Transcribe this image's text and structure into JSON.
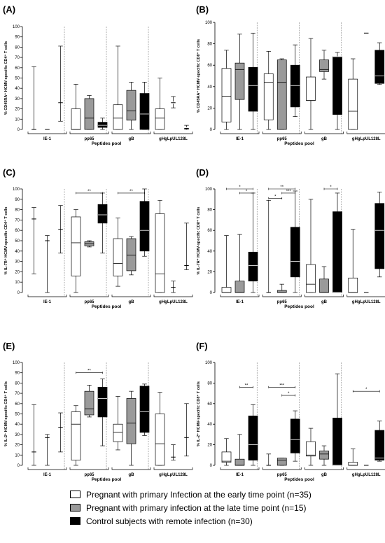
{
  "colors": {
    "early": "#ffffff",
    "late": "#9a9a9a",
    "control": "#000000"
  },
  "legend": [
    {
      "label": "Pregnant with primary Infection at the early time point (n=35)",
      "color": "#ffffff"
    },
    {
      "label": "Pregnant with primary infection at the late time point (n=15)",
      "color": "#9a9a9a"
    },
    {
      "label": "Control subjects with remote infection (n=30)",
      "color": "#000000"
    }
  ],
  "chart_data": [
    {
      "panel": "(A)",
      "type": "box",
      "ylabel": "% CD45RA⁺ HCMV-specific CD4⁺ T cells",
      "xlabel": "Peptides pool",
      "categories": [
        "IE-1",
        "pp65",
        "gB",
        "gHgLpUL128L"
      ],
      "ylim": [
        0,
        100
      ],
      "yticks": [
        0,
        10,
        20,
        30,
        40,
        50,
        60,
        70,
        80,
        90,
        100
      ],
      "series": [
        {
          "name": "Pregnant with primary Infection at the early time point (n=35)",
          "boxes": [
            [
              0,
              0,
              0,
              0,
              61
            ],
            [
              0,
              0,
              0,
              20,
              44
            ],
            [
              0,
              0,
              11,
              24,
              81
            ],
            [
              0,
              0,
              11,
              20,
              50
            ]
          ]
        },
        {
          "name": "Pregnant with primary infection at the late time point (n=15)",
          "boxes": [
            [
              0,
              0,
              0,
              0,
              0
            ],
            [
              0,
              0,
              11,
              30,
              33
            ],
            [
              0,
              9,
              18,
              38,
              46
            ],
            [
              21,
              25,
              26,
              27,
              32
            ]
          ]
        },
        {
          "name": "Control subjects with remote infection (n=30)",
          "boxes": [
            [
              8,
              26,
              26,
              26,
              81
            ],
            [
              0,
              2,
              4,
              7,
              11
            ],
            [
              0,
              0,
              15,
              35,
              46
            ],
            [
              0,
              1,
              1,
              2,
              4
            ]
          ]
        }
      ],
      "box_visible": [
        [
          false,
          true,
          true,
          true
        ],
        [
          false,
          true,
          true,
          false
        ],
        [
          false,
          true,
          true,
          false
        ]
      ],
      "significance": []
    },
    {
      "panel": "(B)",
      "type": "box",
      "ylabel": "% CD45RA⁺ HCMV-specific CD8⁺ T cells",
      "xlabel": "Peptides pool",
      "categories": [
        "IE-1",
        "pp65",
        "gB",
        "gHgLpUL128L"
      ],
      "ylim": [
        0,
        100
      ],
      "yticks": [
        0,
        20,
        40,
        60,
        80,
        100
      ],
      "series": [
        {
          "name": "Pregnant with primary Infection at the early time point (n=35)",
          "boxes": [
            [
              0,
              7,
              31,
              57,
              74
            ],
            [
              0,
              9,
              44,
              52,
              73
            ],
            [
              0,
              27,
              27,
              49,
              85
            ],
            [
              0,
              0,
              17,
              47,
              66
            ]
          ]
        },
        {
          "name": "Pregnant with primary infection at the late time point (n=15)",
          "boxes": [
            [
              0,
              28,
              56,
              62,
              89
            ],
            [
              0,
              0,
              44,
              65,
              66
            ],
            [
              47,
              54,
              56,
              65,
              74
            ],
            [
              90,
              90,
              90,
              90,
              90
            ]
          ]
        },
        {
          "name": "Control subjects with remote infection (n=30)",
          "boxes": [
            [
              0,
              17,
              41,
              58,
              90
            ],
            [
              12,
              21,
              41,
              60,
              79
            ],
            [
              0,
              14,
              68,
              68,
              72
            ],
            [
              42,
              43,
              50,
              74,
              81
            ]
          ]
        }
      ],
      "box_visible": [
        [
          true,
          true,
          true,
          true
        ],
        [
          true,
          true,
          true,
          false
        ],
        [
          true,
          true,
          true,
          true
        ]
      ],
      "significance": []
    },
    {
      "panel": "(C)",
      "type": "box",
      "ylabel": "% IL-7R⁺ HCMV-specific CD4⁺ T cells",
      "xlabel": "Peptides pool",
      "categories": [
        "IE-1",
        "pp65",
        "gB",
        "gHgLpUL128L"
      ],
      "ylim": [
        0,
        100
      ],
      "yticks": [
        0,
        10,
        20,
        30,
        40,
        50,
        60,
        70,
        80,
        90,
        100
      ],
      "series": [
        {
          "name": "Pregnant with primary Infection at the early time point (n=35)",
          "boxes": [
            [
              18,
              71,
              71,
              71,
              82
            ],
            [
              0,
              16,
              48,
              73,
              80
            ],
            [
              6,
              16,
              28,
              52,
              72
            ],
            [
              0,
              0,
              18,
              76,
              89
            ]
          ]
        },
        {
          "name": "Pregnant with primary infection at the late time point (n=15)",
          "boxes": [
            [
              0,
              50,
              50,
              50,
              55
            ],
            [
              44,
              45,
              47,
              49,
              50
            ],
            [
              17,
              21,
              36,
              52,
              54
            ],
            [
              0,
              5,
              5,
              5,
              11
            ]
          ]
        },
        {
          "name": "Control subjects with remote infection (n=30)",
          "boxes": [
            [
              38,
              61,
              61,
              61,
              84
            ],
            [
              38,
              67,
              75,
              85,
              96
            ],
            [
              35,
              40,
              60,
              88,
              100
            ],
            [
              22,
              26,
              26,
              26,
              67
            ]
          ]
        }
      ],
      "box_visible": [
        [
          false,
          true,
          true,
          true
        ],
        [
          false,
          true,
          true,
          false
        ],
        [
          false,
          true,
          true,
          false
        ]
      ],
      "significance": [
        {
          "label": "**",
          "pool": 1,
          "from": 0,
          "to": 2,
          "y": 96
        },
        {
          "label": "**",
          "pool": 2,
          "from": 0,
          "to": 2,
          "y": 96
        }
      ]
    },
    {
      "panel": "(D)",
      "type": "box",
      "ylabel": "% IL-7R⁺ HCMV-specific CD8⁺ T cells",
      "xlabel": "Peptides pool",
      "categories": [
        "IE-1",
        "pp65",
        "gB",
        "gHgLpUL128L"
      ],
      "ylim": [
        0,
        100
      ],
      "yticks": [
        0,
        20,
        40,
        60,
        80,
        100
      ],
      "series": [
        {
          "name": "Pregnant with primary Infection at the early time point (n=35)",
          "boxes": [
            [
              0,
              0,
              0,
              5,
              55
            ],
            [
              0,
              0,
              0,
              0,
              89
            ],
            [
              0,
              0,
              8,
              27,
              90
            ],
            [
              0,
              0,
              0,
              14,
              61
            ]
          ]
        },
        {
          "name": "Pregnant with primary infection at the late time point (n=15)",
          "boxes": [
            [
              0,
              0,
              0,
              11,
              56
            ],
            [
              0,
              0,
              0,
              2,
              8
            ],
            [
              0,
              0,
              0,
              13,
              25
            ],
            [
              0,
              0,
              0,
              0,
              0
            ]
          ]
        },
        {
          "name": "Control subjects with remote infection (n=30)",
          "boxes": [
            [
              0,
              11,
              26,
              39,
              96
            ],
            [
              0,
              15,
              30,
              63,
              98
            ],
            [
              0,
              0,
              0,
              78,
              96
            ],
            [
              15,
              23,
              60,
              86,
              97
            ]
          ]
        }
      ],
      "box_visible": [
        [
          true,
          true,
          true,
          true
        ],
        [
          true,
          true,
          true,
          false
        ],
        [
          true,
          true,
          true,
          true
        ]
      ],
      "significance": [
        {
          "label": "*",
          "pool": 0,
          "from": 0,
          "to": 2,
          "y": 100
        },
        {
          "label": "*",
          "pool": 0,
          "from": 1,
          "to": 2,
          "y": 96
        },
        {
          "label": "**",
          "pool": 1,
          "from": 0,
          "to": 2,
          "y": 100
        },
        {
          "label": "*",
          "pool": 1,
          "from": 0,
          "to": 1,
          "y": 91
        },
        {
          "label": "***",
          "pool": 1,
          "from": 1,
          "to": 2,
          "y": 96
        },
        {
          "label": "*",
          "pool": 2,
          "from": 1,
          "to": 2,
          "y": 100
        }
      ]
    },
    {
      "panel": "(E)",
      "type": "box",
      "ylabel": "% IL-2⁺ HCMV-specific CD4⁺ T cells",
      "xlabel": "Peptides pool",
      "categories": [
        "IE-1",
        "pp65",
        "gB",
        "gHgLpUL128L"
      ],
      "ylim": [
        0,
        100
      ],
      "yticks": [
        0,
        10,
        20,
        30,
        40,
        50,
        60,
        70,
        80,
        90,
        100
      ],
      "series": [
        {
          "name": "Pregnant with primary Infection at the early time point (n=35)",
          "boxes": [
            [
              0,
              13,
              13,
              13,
              59
            ],
            [
              0,
              5,
              40,
              52,
              58
            ],
            [
              15,
              23,
              32,
              40,
              67
            ],
            [
              0,
              0,
              21,
              50,
              71
            ]
          ]
        },
        {
          "name": "Pregnant with primary infection at the late time point (n=15)",
          "boxes": [
            [
              0,
              27,
              27,
              27,
              30
            ],
            [
              47,
              49,
              55,
              72,
              78
            ],
            [
              0,
              21,
              41,
              65,
              72
            ],
            [
              5,
              8,
              8,
              8,
              20
            ]
          ]
        },
        {
          "name": "Control subjects with remote infection (n=30)",
          "boxes": [
            [
              13,
              37,
              37,
              37,
              51
            ],
            [
              19,
              47,
              65,
              76,
              84
            ],
            [
              29,
              32,
              52,
              77,
              79
            ],
            [
              9,
              27,
              27,
              27,
              60
            ]
          ]
        }
      ],
      "box_visible": [
        [
          false,
          true,
          true,
          true
        ],
        [
          false,
          true,
          true,
          false
        ],
        [
          false,
          true,
          true,
          false
        ]
      ],
      "significance": [
        {
          "label": "**",
          "pool": 1,
          "from": 0,
          "to": 2,
          "y": 90
        }
      ]
    },
    {
      "panel": "(F)",
      "type": "box",
      "ylabel": "% IL-2⁺ HCMV-specific CD8⁺ T cells",
      "xlabel": "Peptides pool",
      "categories": [
        "IE-1",
        "pp65",
        "gB",
        "gHgLpUL128L"
      ],
      "ylim": [
        0,
        100
      ],
      "yticks": [
        0,
        20,
        40,
        60,
        80,
        100
      ],
      "series": [
        {
          "name": "Pregnant with primary Infection at the early time point (n=35)",
          "boxes": [
            [
              0,
              3,
              4,
              13,
              26
            ],
            [
              0,
              0,
              0,
              0,
              11
            ],
            [
              0,
              9,
              10,
              23,
              36
            ],
            [
              0,
              0,
              0,
              3,
              16
            ]
          ]
        },
        {
          "name": "Pregnant with primary infection at the late time point (n=15)",
          "boxes": [
            [
              0,
              0,
              0,
              6,
              30
            ],
            [
              0,
              0,
              5,
              7,
              7
            ],
            [
              0,
              6,
              11,
              14,
              19
            ],
            [
              0,
              0,
              0,
              0,
              0
            ]
          ]
        },
        {
          "name": "Control subjects with remote infection (n=30)",
          "boxes": [
            [
              0,
              5,
              20,
              48,
              59
            ],
            [
              4,
              12,
              25,
              45,
              53
            ],
            [
              0,
              0,
              0,
              46,
              89
            ],
            [
              4,
              5,
              7,
              34,
              43
            ]
          ]
        }
      ],
      "box_visible": [
        [
          true,
          true,
          true,
          true
        ],
        [
          true,
          true,
          true,
          false
        ],
        [
          true,
          true,
          true,
          true
        ]
      ],
      "significance": [
        {
          "label": "**",
          "pool": 0,
          "from": 1,
          "to": 2,
          "y": 76
        },
        {
          "label": "***",
          "pool": 1,
          "from": 0,
          "to": 2,
          "y": 76
        },
        {
          "label": "*",
          "pool": 1,
          "from": 1,
          "to": 2,
          "y": 68
        },
        {
          "label": "*",
          "pool": 3,
          "from": 0,
          "to": 2,
          "y": 72
        }
      ]
    }
  ]
}
